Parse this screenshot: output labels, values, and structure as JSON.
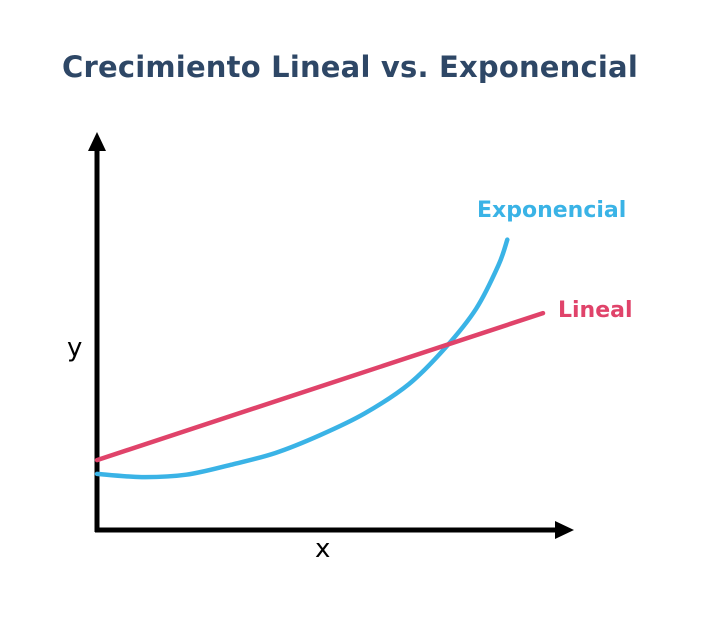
{
  "chart_data": {
    "type": "line",
    "title": "Crecimiento Lineal vs. Exponencial",
    "xlabel": "x",
    "ylabel": "y",
    "xlim": [
      0,
      10
    ],
    "ylim": [
      0,
      10
    ],
    "grid": false,
    "axis_ticks": false,
    "series": [
      {
        "name": "Exponencial",
        "color": "#3ab3e6",
        "x": [
          0,
          1,
          2,
          3,
          4,
          5,
          6,
          7,
          7.8,
          8.5,
          9,
          9.2
        ],
        "y": [
          1.42,
          1.34,
          1.4,
          1.65,
          1.95,
          2.4,
          2.95,
          3.7,
          4.6,
          5.6,
          6.7,
          7.35
        ]
      },
      {
        "name": "Lineal",
        "color": "#e0436a",
        "x": [
          0,
          10
        ],
        "y": [
          1.77,
          5.49
        ]
      }
    ]
  }
}
